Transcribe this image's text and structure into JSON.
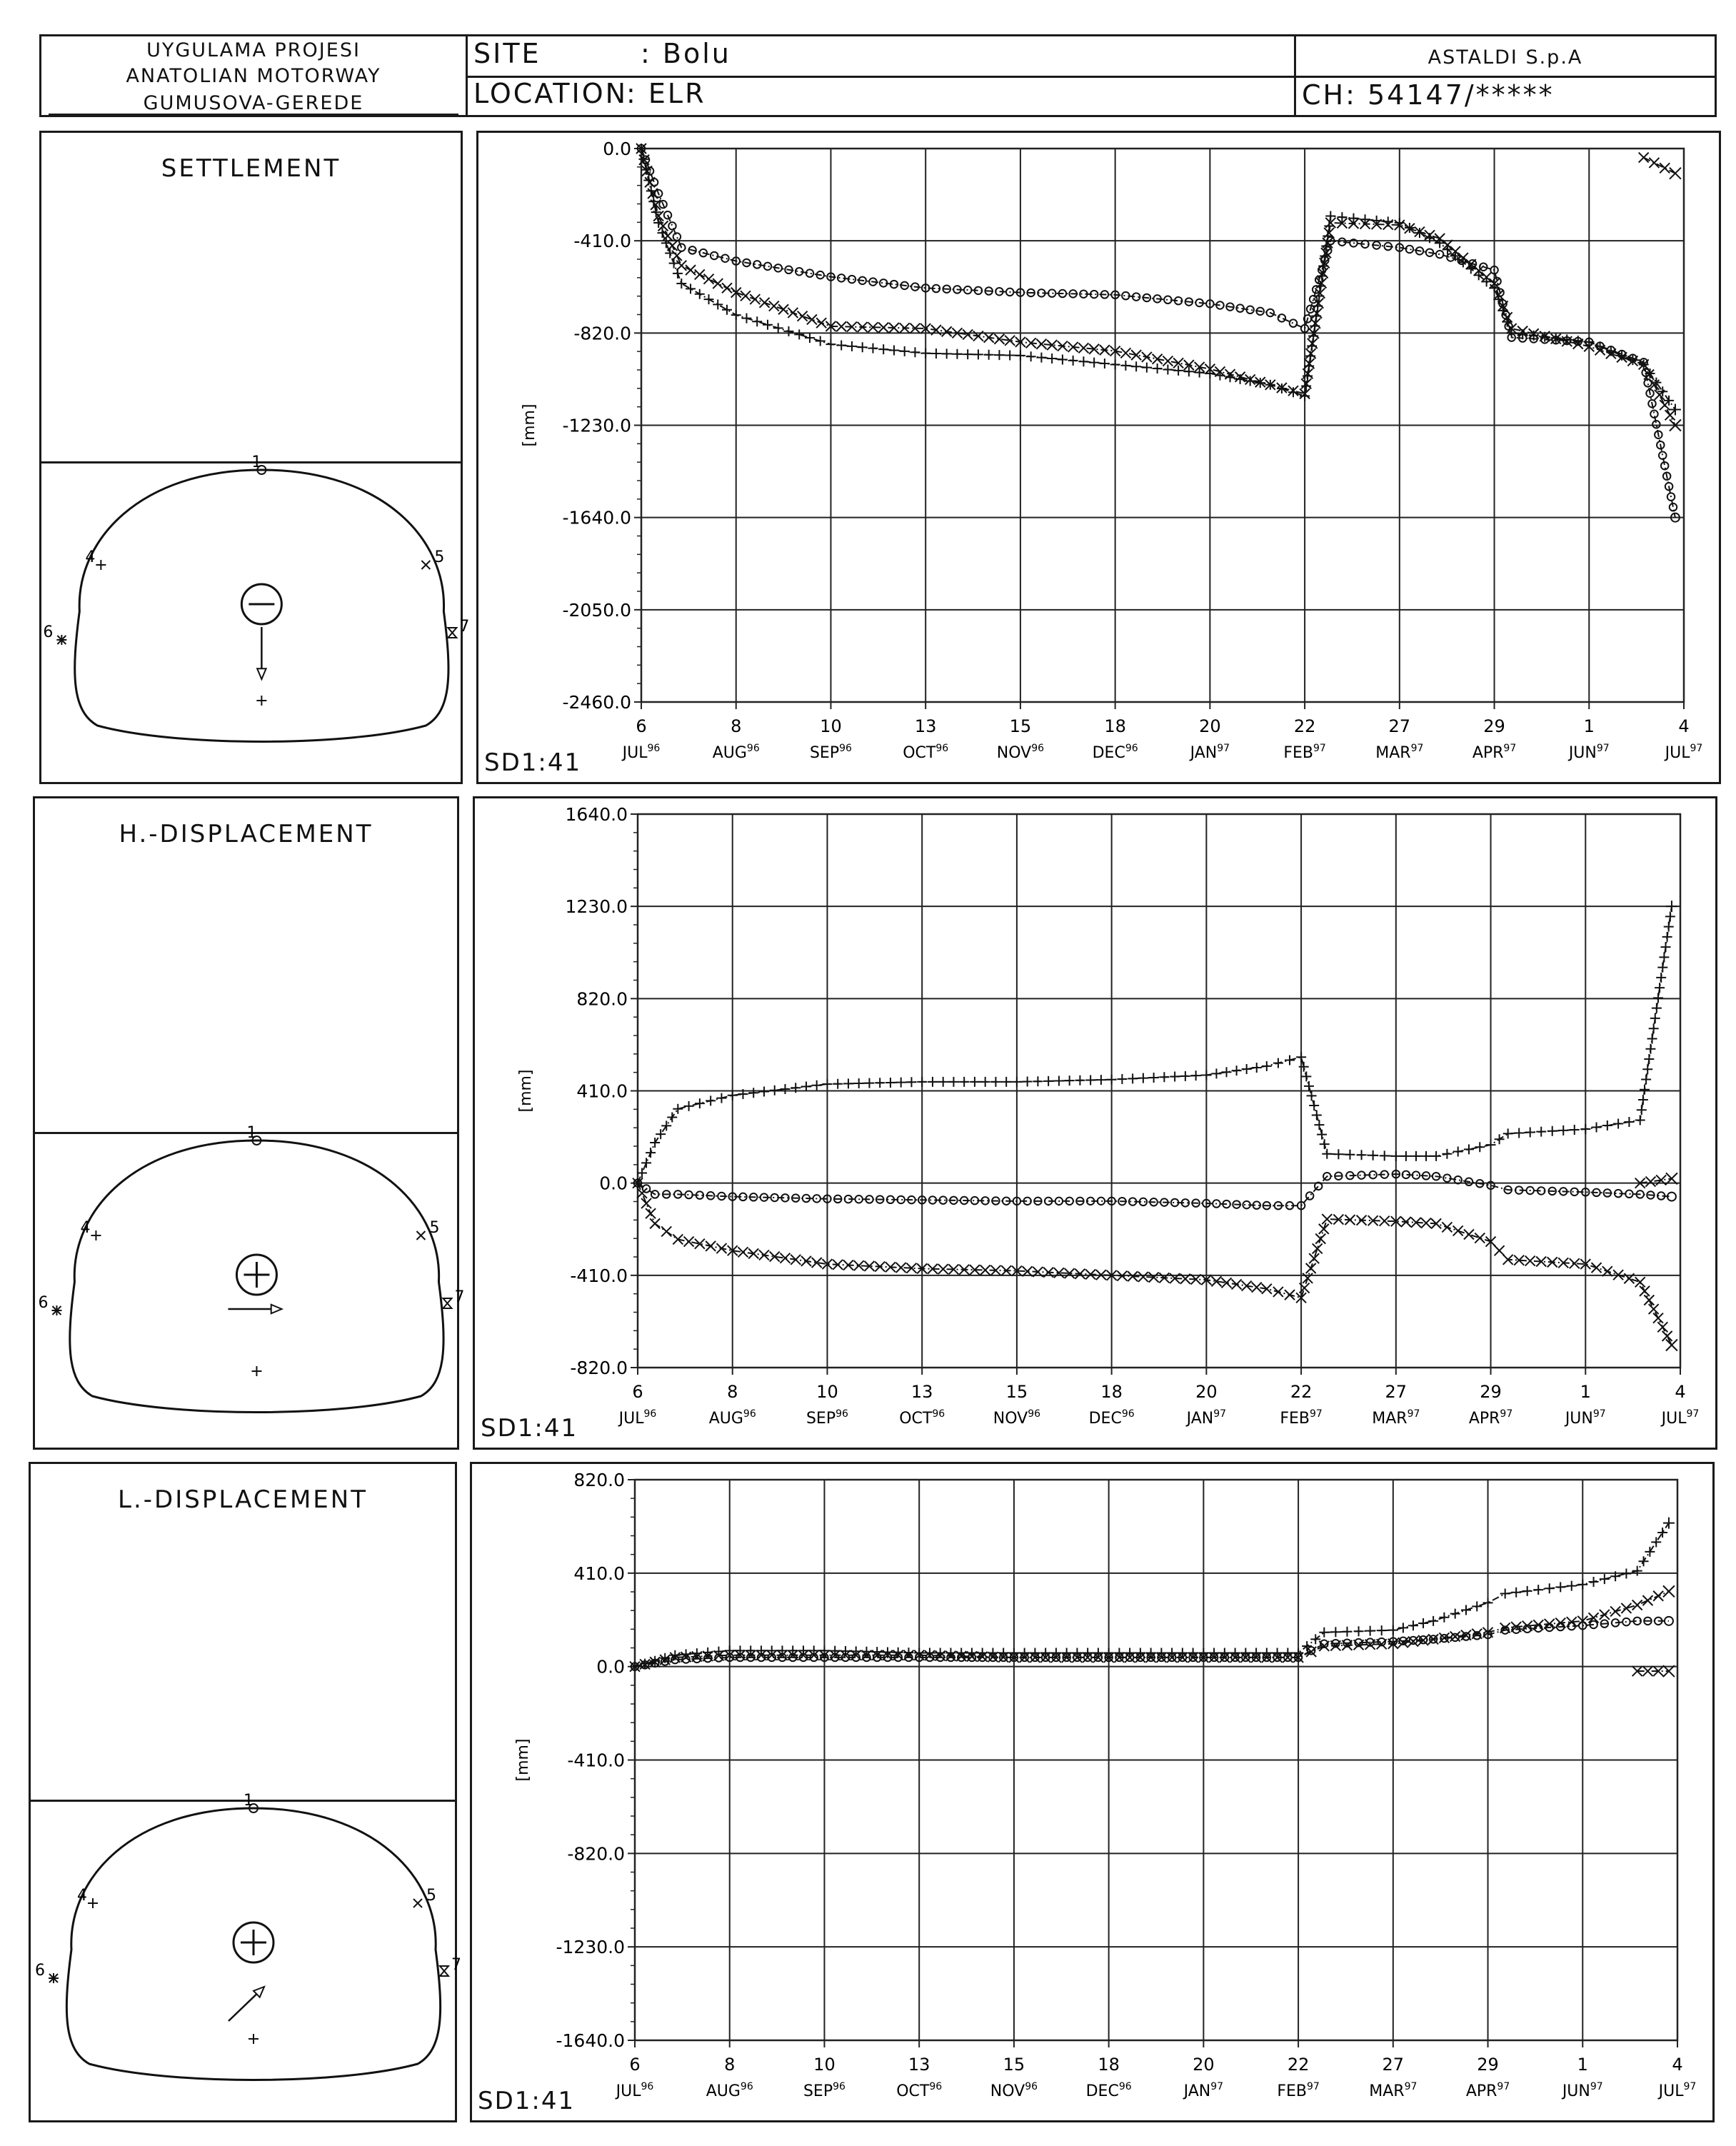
{
  "header": {
    "project_line1": "UYGULAMA PROJESI",
    "project_line2": "ANATOLIAN MOTORWAY",
    "project_line3": "GUMUSOVA-GEREDE",
    "site_label": "SITE",
    "site_value": ": Bolu",
    "location_label": "LOCATION",
    "location_value": ": ELR",
    "company": "ASTALDI S.p.A",
    "chainage": "CH: 54147/*****"
  },
  "panels": [
    {
      "title": "SETTLEMENT",
      "symbol": "minus",
      "arrow": "down",
      "sd_label": "SD1:41"
    },
    {
      "title": "H.-DISPLACEMENT",
      "symbol": "plus",
      "arrow": "right",
      "sd_label": "SD1:41"
    },
    {
      "title": "L.-DISPLACEMENT",
      "symbol": "plus",
      "arrow": "diag",
      "sd_label": "SD1:41"
    }
  ],
  "section": {
    "points": [
      {
        "id": "1",
        "marker": "circle"
      },
      {
        "id": "4",
        "marker": "plus"
      },
      {
        "id": "5",
        "marker": "x"
      },
      {
        "id": "6",
        "marker": "star"
      },
      {
        "id": "7",
        "marker": "hourglass"
      }
    ]
  },
  "x_ticks": [
    {
      "day": "6",
      "month": "JUL",
      "yr": "96"
    },
    {
      "day": "8",
      "month": "AUG",
      "yr": "96"
    },
    {
      "day": "10",
      "month": "SEP",
      "yr": "96"
    },
    {
      "day": "13",
      "month": "OCT",
      "yr": "96"
    },
    {
      "day": "15",
      "month": "NOV",
      "yr": "96"
    },
    {
      "day": "18",
      "month": "DEC",
      "yr": "96"
    },
    {
      "day": "20",
      "month": "JAN",
      "yr": "97"
    },
    {
      "day": "22",
      "month": "FEB",
      "yr": "97"
    },
    {
      "day": "27",
      "month": "MAR",
      "yr": "97"
    },
    {
      "day": "29",
      "month": "APR",
      "yr": "97"
    },
    {
      "day": "1",
      "month": "JUN",
      "yr": "97"
    },
    {
      "day": "4",
      "month": "JUL",
      "yr": "97"
    }
  ],
  "chart_data": [
    {
      "type": "line",
      "title": "SETTLEMENT",
      "ylabel": "[mm]",
      "ylim": [
        -2460.0,
        0.0
      ],
      "yticks": [
        "0.0",
        "-410.0",
        "-820.0",
        "-1230.0",
        "-1640.0",
        "-2050.0",
        "-2460.0"
      ],
      "x_tick_dates": [
        "1996-07-06",
        "1996-08-08",
        "1996-09-10",
        "1996-10-13",
        "1996-11-15",
        "1996-12-18",
        "1997-01-20",
        "1997-02-22",
        "1997-03-27",
        "1997-04-29",
        "1997-06-01",
        "1997-07-04"
      ],
      "series": [
        {
          "marker": "o",
          "points": [
            [
              "1996-07-06",
              0
            ],
            [
              "1996-07-12",
              -200
            ],
            [
              "1996-07-20",
              -440
            ],
            [
              "1996-08-08",
              -500
            ],
            [
              "1996-09-10",
              -570
            ],
            [
              "1996-10-13",
              -620
            ],
            [
              "1996-11-15",
              -640
            ],
            [
              "1996-12-18",
              -650
            ],
            [
              "1997-01-20",
              -690
            ],
            [
              "1997-02-10",
              -730
            ],
            [
              "1997-02-22",
              -800
            ],
            [
              "1997-03-03",
              -410
            ],
            [
              "1997-03-27",
              -440
            ],
            [
              "1997-04-10",
              -470
            ],
            [
              "1997-04-29",
              -540
            ],
            [
              "1997-05-05",
              -840
            ],
            [
              "1997-06-01",
              -860
            ],
            [
              "1997-06-20",
              -950
            ],
            [
              "1997-07-01",
              -1640
            ]
          ]
        },
        {
          "marker": "x",
          "points": [
            [
              "1996-07-06",
              0
            ],
            [
              "1996-07-12",
              -300
            ],
            [
              "1996-07-20",
              -520
            ],
            [
              "1996-08-08",
              -640
            ],
            [
              "1996-09-10",
              -790
            ],
            [
              "1996-10-13",
              -800
            ],
            [
              "1996-11-15",
              -860
            ],
            [
              "1996-12-18",
              -900
            ],
            [
              "1997-01-20",
              -980
            ],
            [
              "1997-02-10",
              -1050
            ],
            [
              "1997-02-22",
              -1090
            ],
            [
              "1997-03-03",
              -330
            ],
            [
              "1997-03-27",
              -340
            ],
            [
              "1997-04-10",
              -400
            ],
            [
              "1997-04-29",
              -600
            ],
            [
              "1997-05-05",
              -800
            ],
            [
              "1997-06-01",
              -880
            ],
            [
              "1997-06-20",
              -960
            ],
            [
              "1997-07-01",
              -1230
            ]
          ]
        },
        {
          "marker": "+",
          "points": [
            [
              "1996-07-06",
              0
            ],
            [
              "1996-07-12",
              -330
            ],
            [
              "1996-07-20",
              -600
            ],
            [
              "1996-08-08",
              -740
            ],
            [
              "1996-09-10",
              -870
            ],
            [
              "1996-10-13",
              -910
            ],
            [
              "1996-11-15",
              -920
            ],
            [
              "1996-12-18",
              -960
            ],
            [
              "1997-01-20",
              -1000
            ],
            [
              "1997-02-10",
              -1050
            ],
            [
              "1997-02-22",
              -1100
            ],
            [
              "1997-03-03",
              -300
            ],
            [
              "1997-03-27",
              -330
            ],
            [
              "1997-04-10",
              -420
            ],
            [
              "1997-04-29",
              -620
            ],
            [
              "1997-05-05",
              -820
            ],
            [
              "1997-06-01",
              -860
            ],
            [
              "1997-06-20",
              -960
            ],
            [
              "1997-07-01",
              -1160
            ]
          ]
        },
        {
          "marker": "x",
          "points": [
            [
              "1997-06-20",
              -40
            ],
            [
              "1997-07-01",
              -110
            ]
          ]
        }
      ]
    },
    {
      "type": "line",
      "title": "H.-DISPLACEMENT",
      "ylabel": "[mm]",
      "ylim": [
        -820.0,
        1640.0
      ],
      "yticks": [
        "1640.0",
        "1230.0",
        "820.0",
        "410.0",
        "0.0",
        "-410.0",
        "-820.0"
      ],
      "x_tick_dates": [
        "1996-07-06",
        "1996-08-08",
        "1996-09-10",
        "1996-10-13",
        "1996-11-15",
        "1996-12-18",
        "1997-01-20",
        "1997-02-22",
        "1997-03-27",
        "1997-04-29",
        "1997-06-01",
        "1997-07-04"
      ],
      "series": [
        {
          "marker": "+",
          "points": [
            [
              "1996-07-06",
              0
            ],
            [
              "1996-07-12",
              180
            ],
            [
              "1996-07-20",
              330
            ],
            [
              "1996-08-08",
              390
            ],
            [
              "1996-09-10",
              440
            ],
            [
              "1996-10-13",
              450
            ],
            [
              "1996-11-15",
              450
            ],
            [
              "1996-12-18",
              460
            ],
            [
              "1997-01-20",
              480
            ],
            [
              "1997-02-10",
              520
            ],
            [
              "1997-02-22",
              560
            ],
            [
              "1997-03-03",
              130
            ],
            [
              "1997-03-27",
              120
            ],
            [
              "1997-04-10",
              120
            ],
            [
              "1997-04-29",
              170
            ],
            [
              "1997-05-05",
              220
            ],
            [
              "1997-06-01",
              240
            ],
            [
              "1997-06-20",
              280
            ],
            [
              "1997-07-01",
              1230
            ]
          ]
        },
        {
          "marker": "o",
          "points": [
            [
              "1996-07-06",
              0
            ],
            [
              "1996-07-12",
              -50
            ],
            [
              "1996-07-20",
              -50
            ],
            [
              "1996-08-08",
              -60
            ],
            [
              "1996-09-10",
              -70
            ],
            [
              "1996-10-13",
              -75
            ],
            [
              "1996-11-15",
              -80
            ],
            [
              "1996-12-18",
              -80
            ],
            [
              "1997-01-20",
              -90
            ],
            [
              "1997-02-10",
              -100
            ],
            [
              "1997-02-22",
              -100
            ],
            [
              "1997-03-03",
              30
            ],
            [
              "1997-03-27",
              40
            ],
            [
              "1997-04-10",
              30
            ],
            [
              "1997-04-29",
              -10
            ],
            [
              "1997-05-05",
              -30
            ],
            [
              "1997-06-01",
              -40
            ],
            [
              "1997-06-20",
              -50
            ],
            [
              "1997-07-01",
              -60
            ]
          ]
        },
        {
          "marker": "x",
          "points": [
            [
              "1996-07-06",
              0
            ],
            [
              "1996-07-12",
              -180
            ],
            [
              "1996-07-20",
              -250
            ],
            [
              "1996-08-08",
              -300
            ],
            [
              "1996-09-10",
              -360
            ],
            [
              "1996-10-13",
              -380
            ],
            [
              "1996-11-15",
              -390
            ],
            [
              "1996-12-18",
              -410
            ],
            [
              "1997-01-20",
              -430
            ],
            [
              "1997-02-10",
              -470
            ],
            [
              "1997-02-22",
              -510
            ],
            [
              "1997-03-03",
              -160
            ],
            [
              "1997-03-27",
              -170
            ],
            [
              "1997-04-10",
              -180
            ],
            [
              "1997-04-29",
              -260
            ],
            [
              "1997-05-05",
              -340
            ],
            [
              "1997-06-01",
              -360
            ],
            [
              "1997-06-20",
              -440
            ],
            [
              "1997-07-01",
              -720
            ]
          ]
        },
        {
          "marker": "x",
          "points": [
            [
              "1997-06-20",
              0
            ],
            [
              "1997-07-01",
              20
            ]
          ]
        }
      ]
    },
    {
      "type": "line",
      "title": "L.-DISPLACEMENT",
      "ylabel": "[mm]",
      "ylim": [
        -1640.0,
        820.0
      ],
      "yticks": [
        "820.0",
        "410.0",
        "0.0",
        "-410.0",
        "-820.0",
        "-1230.0",
        "-1640.0"
      ],
      "x_tick_dates": [
        "1996-07-06",
        "1996-08-08",
        "1996-09-10",
        "1996-10-13",
        "1996-11-15",
        "1996-12-18",
        "1997-01-20",
        "1997-02-22",
        "1997-03-27",
        "1997-04-29",
        "1997-06-01",
        "1997-07-04"
      ],
      "series": [
        {
          "marker": "+",
          "points": [
            [
              "1996-07-06",
              0
            ],
            [
              "1996-07-20",
              50
            ],
            [
              "1996-08-08",
              70
            ],
            [
              "1996-09-10",
              70
            ],
            [
              "1996-10-13",
              60
            ],
            [
              "1996-11-15",
              60
            ],
            [
              "1996-12-18",
              60
            ],
            [
              "1997-01-20",
              60
            ],
            [
              "1997-02-22",
              60
            ],
            [
              "1997-03-03",
              150
            ],
            [
              "1997-03-27",
              160
            ],
            [
              "1997-04-10",
              200
            ],
            [
              "1997-04-29",
              280
            ],
            [
              "1997-05-05",
              320
            ],
            [
              "1997-06-01",
              360
            ],
            [
              "1997-06-20",
              420
            ],
            [
              "1997-07-01",
              630
            ]
          ]
        },
        {
          "marker": "o",
          "points": [
            [
              "1996-07-06",
              0
            ],
            [
              "1996-07-20",
              30
            ],
            [
              "1996-08-08",
              40
            ],
            [
              "1996-09-10",
              40
            ],
            [
              "1996-10-13",
              40
            ],
            [
              "1996-11-15",
              40
            ],
            [
              "1996-12-18",
              40
            ],
            [
              "1997-01-20",
              40
            ],
            [
              "1997-02-22",
              40
            ],
            [
              "1997-03-03",
              100
            ],
            [
              "1997-03-27",
              110
            ],
            [
              "1997-04-10",
              120
            ],
            [
              "1997-04-29",
              140
            ],
            [
              "1997-05-05",
              160
            ],
            [
              "1997-06-01",
              180
            ],
            [
              "1997-06-20",
              200
            ],
            [
              "1997-07-01",
              200
            ]
          ]
        },
        {
          "marker": "x",
          "points": [
            [
              "1996-07-06",
              0
            ],
            [
              "1996-07-20",
              40
            ],
            [
              "1996-08-08",
              50
            ],
            [
              "1996-09-10",
              50
            ],
            [
              "1996-10-13",
              50
            ],
            [
              "1996-11-15",
              40
            ],
            [
              "1996-12-18",
              40
            ],
            [
              "1997-01-20",
              40
            ],
            [
              "1997-02-22",
              40
            ],
            [
              "1997-03-03",
              90
            ],
            [
              "1997-03-27",
              100
            ],
            [
              "1997-04-10",
              120
            ],
            [
              "1997-04-29",
              150
            ],
            [
              "1997-05-05",
              170
            ],
            [
              "1997-06-01",
              200
            ],
            [
              "1997-06-20",
              270
            ],
            [
              "1997-07-01",
              330
            ]
          ]
        },
        {
          "marker": "x",
          "points": [
            [
              "1997-06-20",
              -20
            ],
            [
              "1997-07-01",
              -20
            ]
          ]
        }
      ]
    }
  ]
}
